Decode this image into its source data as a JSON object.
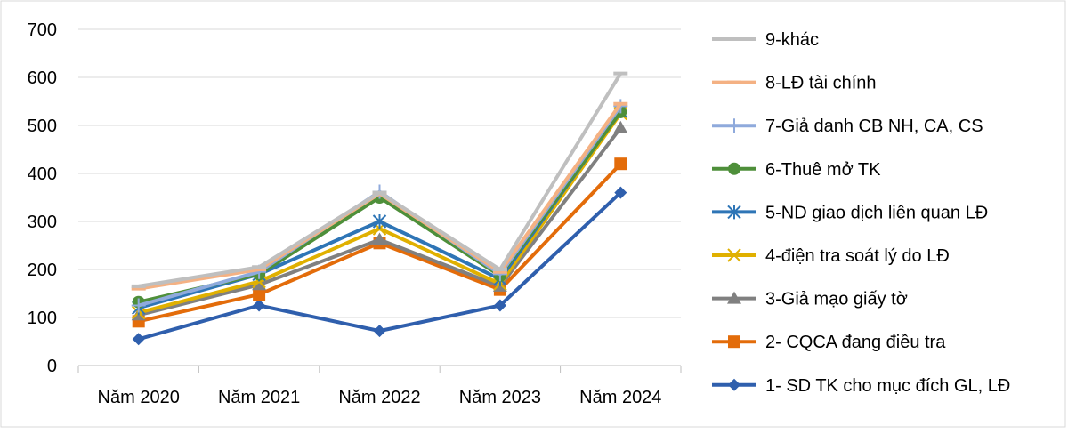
{
  "chart_data": {
    "type": "line",
    "title": "",
    "xlabel": "",
    "ylabel": "",
    "ylim": [
      0,
      700
    ],
    "yticks": [
      0,
      100,
      200,
      300,
      400,
      500,
      600,
      700
    ],
    "grid": "horizontal-major",
    "legend_position": "right",
    "categories": [
      "Năm 2020",
      "Năm 2021",
      "Năm 2022",
      "Năm 2023",
      "Năm 2024"
    ],
    "series": [
      {
        "name": "9-khác",
        "values": [
          165,
          205,
          360,
          200,
          608
        ],
        "color": "#bfbfbf",
        "marker": "dash"
      },
      {
        "name": "8-LĐ tài chính",
        "values": [
          160,
          200,
          358,
          195,
          545
        ],
        "color": "#f4b183",
        "marker": "dash"
      },
      {
        "name": "7-Giả danh CB NH, CA, CS",
        "values": [
          125,
          195,
          362,
          190,
          540
        ],
        "color": "#8faadc",
        "marker": "plus"
      },
      {
        "name": "6-Thuê mở TK",
        "values": [
          132,
          190,
          350,
          187,
          528
        ],
        "color": "#4e8f3a",
        "marker": "circle"
      },
      {
        "name": "5-ND giao dịch liên quan LĐ",
        "values": [
          120,
          190,
          300,
          180,
          530
        ],
        "color": "#2e75b6",
        "marker": "star"
      },
      {
        "name": "4-điện tra soát lý do LĐ",
        "values": [
          110,
          175,
          285,
          170,
          525
        ],
        "color": "#e0b000",
        "marker": "x"
      },
      {
        "name": "3-Giả mạo giấy tờ",
        "values": [
          105,
          168,
          262,
          165,
          495
        ],
        "color": "#808080",
        "marker": "triangle"
      },
      {
        "name": "2- CQCA đang điều tra",
        "values": [
          92,
          148,
          255,
          158,
          420
        ],
        "color": "#e36c0a",
        "marker": "square"
      },
      {
        "name": "1- SD TK cho mục đích GL, LĐ",
        "values": [
          55,
          125,
          72,
          125,
          360
        ],
        "color": "#2f5fad",
        "marker": "diamond"
      }
    ]
  }
}
